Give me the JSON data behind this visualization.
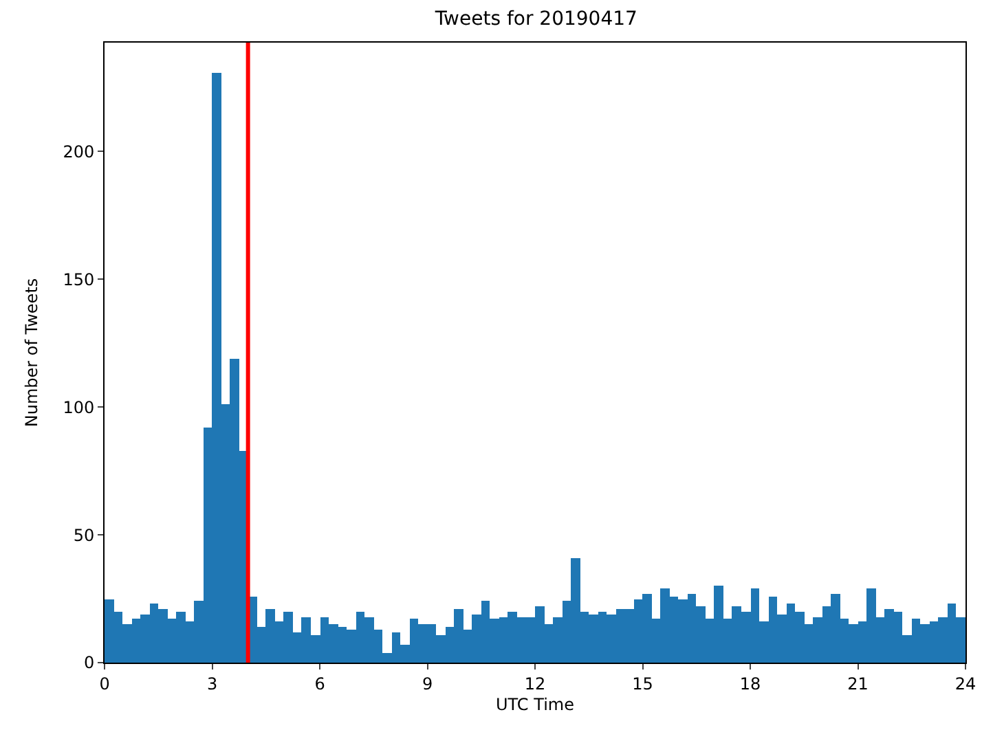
{
  "chart_data": {
    "type": "histogram",
    "title": "Tweets for 20190417",
    "xlabel": "UTC Time",
    "ylabel": "Number of Tweets",
    "color": "#1f77b4",
    "bins": [
      0,
      0.25,
      0.5,
      0.75,
      1,
      1.25,
      1.5,
      1.75,
      2,
      2.25,
      2.5,
      2.75,
      3,
      3.25,
      3.5,
      3.75,
      4,
      4.25,
      4.5,
      4.75,
      5,
      5.25,
      5.5,
      5.75,
      6,
      6.25,
      6.5,
      6.75,
      7,
      7.25,
      7.5,
      7.75,
      8,
      8.25,
      8.5,
      8.75,
      9,
      9.25,
      9.5,
      9.75,
      10,
      10.25,
      10.5,
      10.75,
      11,
      11.25,
      11.5,
      11.75,
      12,
      12.25,
      12.5,
      12.75,
      13,
      13.25,
      13.5,
      13.75,
      14,
      14.25,
      14.5,
      14.75,
      15,
      15.25,
      15.5,
      15.75,
      16,
      16.25,
      16.5,
      16.75,
      17,
      17.25,
      17.5,
      17.75,
      18,
      18.25,
      18.5,
      18.75,
      19,
      19.25,
      19.5,
      19.75,
      20,
      20.25,
      20.5,
      20.75,
      21,
      21.25,
      21.5,
      21.75,
      22,
      22.25,
      22.5,
      22.75,
      23,
      23.25,
      23.5,
      23.75,
      24
    ],
    "values": [
      25,
      20,
      15,
      17,
      19,
      23,
      21,
      17,
      20,
      16,
      24,
      92,
      231,
      101,
      119,
      83,
      26,
      14,
      21,
      16,
      20,
      12,
      18,
      11,
      18,
      15,
      14,
      13,
      20,
      18,
      13,
      4,
      12,
      7,
      17,
      15,
      15,
      11,
      14,
      21,
      13,
      19,
      24,
      17,
      18,
      20,
      18,
      18,
      22,
      15,
      18,
      24,
      41,
      20,
      19,
      20,
      19,
      21,
      21,
      25,
      27,
      17,
      29,
      26,
      25,
      27,
      22,
      17,
      30,
      17,
      22,
      20,
      29,
      16,
      26,
      19,
      23,
      20,
      15,
      18,
      22,
      27,
      17,
      15,
      16,
      29,
      18,
      21,
      20,
      11,
      17,
      15,
      16,
      18,
      23,
      18
    ],
    "xlim": [
      0,
      24
    ],
    "xticks": [
      0,
      3,
      6,
      9,
      12,
      15,
      18,
      21,
      24
    ],
    "ylim": [
      0,
      242.6
    ],
    "yticks": [
      0,
      50,
      100,
      150,
      200
    ],
    "ref_lines": [
      {
        "axis": "x",
        "value": 4,
        "color": "#ff0000"
      }
    ]
  }
}
